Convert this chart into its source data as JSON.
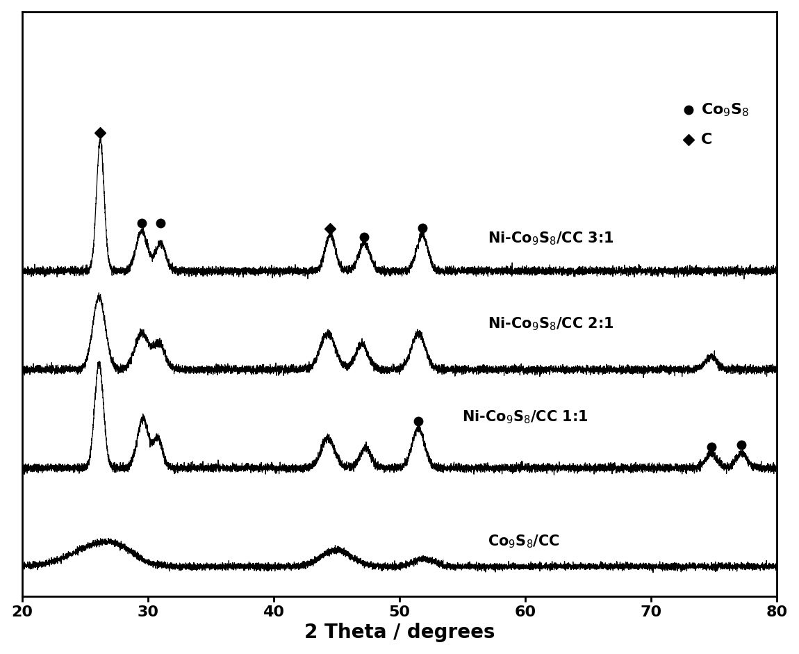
{
  "xlim": [
    20,
    80
  ],
  "xlabel": "2 Theta / degrees",
  "xticks": [
    20,
    30,
    40,
    50,
    60,
    70,
    80
  ],
  "background_color": "#ffffff",
  "line_color": "#000000",
  "offsets": [
    0.0,
    1.5,
    3.0,
    4.5
  ],
  "noise_scale": 0.035,
  "seed": 42,
  "xlabel_fontsize": 20,
  "tick_fontsize": 16,
  "label_fontsize": 15
}
